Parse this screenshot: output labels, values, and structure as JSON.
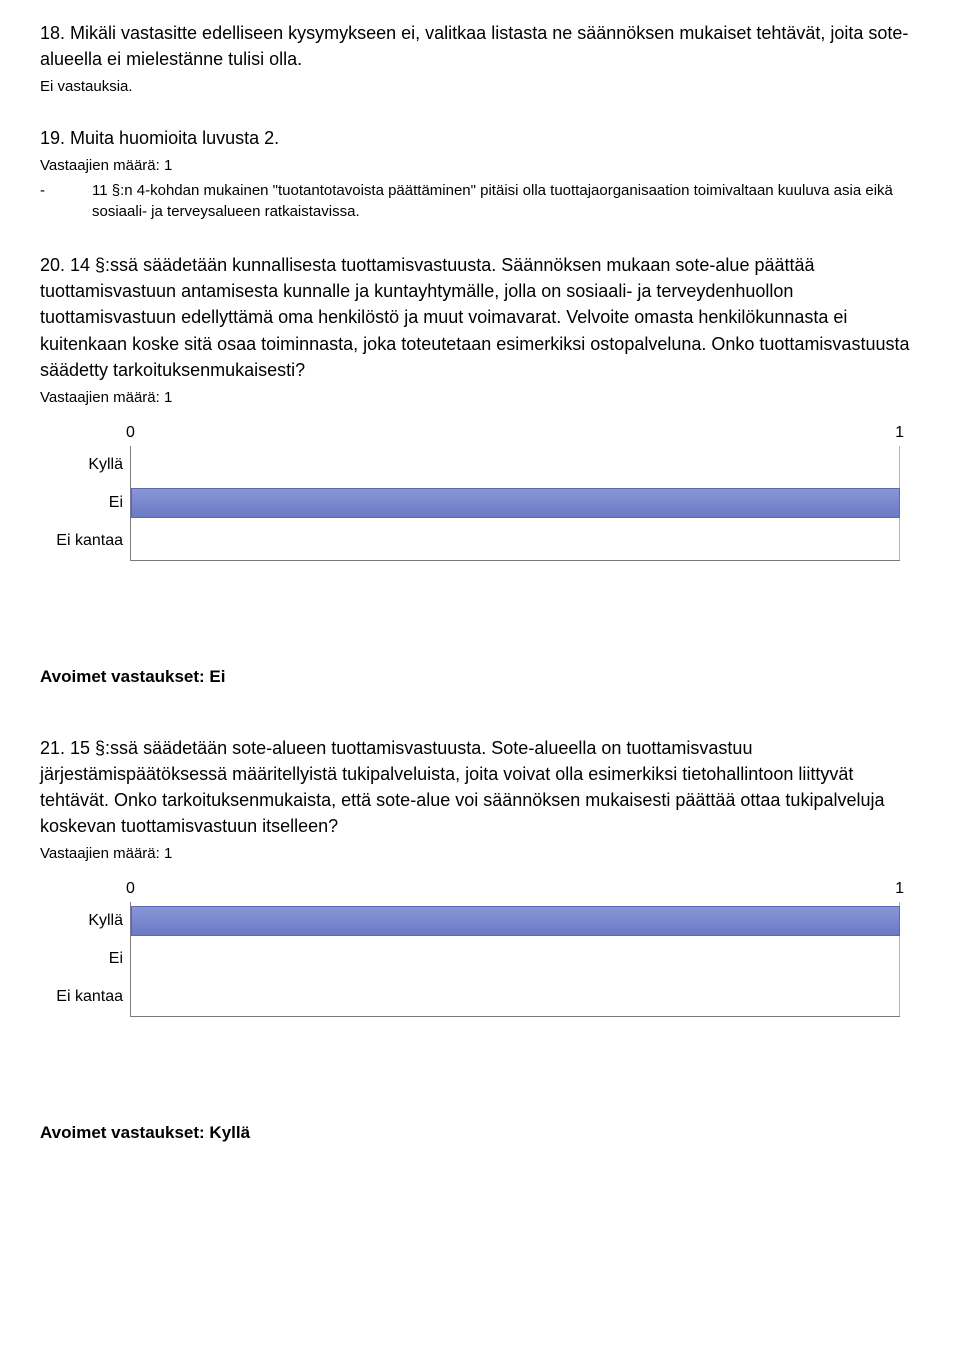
{
  "q18": {
    "title": "18. Mikäli vastasitte edelliseen kysymykseen ei, valitkaa listasta ne säännöksen mukaiset tehtävät, joita sote-alueella ei mielestänne tulisi olla.",
    "no_answers": "Ei vastauksia."
  },
  "q19": {
    "title": "19. Muita huomioita luvusta 2.",
    "respondents": "Vastaajien määrä: 1",
    "bullet_dash": "-",
    "bullet_text": "11 §:n 4-kohdan mukainen \"tuotantotavoista päättäminen\" pitäisi olla tuottajaorganisaation toimivaltaan kuuluva asia eikä sosiaali- ja terveysalueen ratkaistavissa."
  },
  "q20": {
    "title": "20. 14 §:ssä säädetään kunnallisesta tuottamisvastuusta. Säännöksen mukaan sote-alue päättää tuottamisvastuun antamisesta kunnalle ja kuntayhtymälle, jolla on sosiaali- ja terveydenhuollon tuottamisvastuun edellyttämä oma henkilöstö ja muut voimavarat. Velvoite omasta henkilökunnasta ei kuitenkaan koske sitä osaa toiminnasta, joka toteutetaan esimerkiksi ostopalveluna. Onko tuottamisvastuusta säädetty tarkoituksenmukaisesti?",
    "respondents": "Vastaajien määrä: 1",
    "chart": {
      "type": "bar-horizontal",
      "axis_min": "0",
      "axis_max": "1",
      "categories": [
        "Kyllä",
        "Ei",
        "Ei kantaa"
      ],
      "values": [
        0,
        1,
        0
      ],
      "max_value": 1,
      "bar_color_top": "#8a96d6",
      "bar_color_bottom": "#6b7ac5",
      "bar_border": "#5a6ab5",
      "axis_color": "#7a7a7a",
      "tick_color": "#b5b5b5",
      "background": "#ffffff"
    },
    "open_answers": "Avoimet vastaukset: Ei"
  },
  "q21": {
    "title": "21. 15 §:ssä säädetään sote-alueen tuottamisvastuusta. Sote-alueella on tuottamisvastuu järjestämispäätöksessä määritellyistä tukipalveluista, joita voivat olla esimerkiksi tietohallintoon liittyvät tehtävät. Onko tarkoituksenmukaista, että sote-alue voi säännöksen mukaisesti päättää ottaa tukipalveluja koskevan tuottamisvastuun itselleen?",
    "respondents": "Vastaajien määrä: 1",
    "chart": {
      "type": "bar-horizontal",
      "axis_min": "0",
      "axis_max": "1",
      "categories": [
        "Kyllä",
        "Ei",
        "Ei kantaa"
      ],
      "values": [
        1,
        0,
        0
      ],
      "max_value": 1,
      "bar_color_top": "#8a96d6",
      "bar_color_bottom": "#6b7ac5",
      "bar_border": "#5a6ab5",
      "axis_color": "#7a7a7a",
      "tick_color": "#b5b5b5",
      "background": "#ffffff"
    },
    "open_answers": "Avoimet vastaukset: Kyllä"
  }
}
